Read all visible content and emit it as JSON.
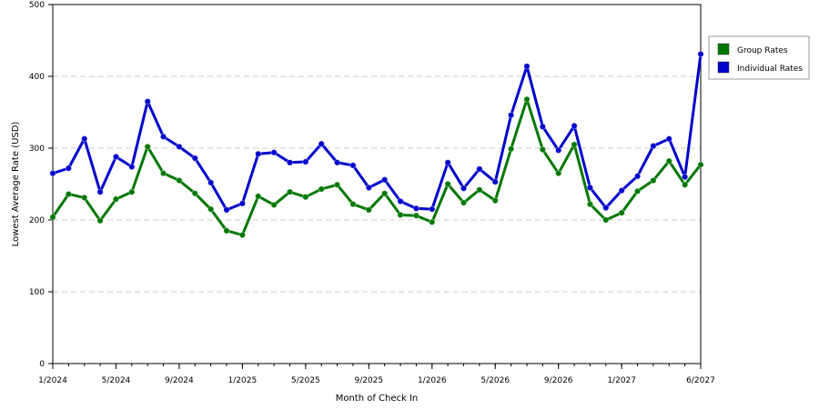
{
  "chart_data": {
    "type": "line",
    "title": "",
    "xlabel": "Month of Check In",
    "ylabel": "Lowest Average Rate (USD)",
    "ylim": [
      0,
      500
    ],
    "yticks": [
      0,
      100,
      200,
      300,
      400,
      500
    ],
    "x_tick_labels": [
      "1/2024",
      "5/2024",
      "9/2024",
      "1/2025",
      "5/2025",
      "9/2025",
      "1/2026",
      "5/2026",
      "9/2026",
      "1/2027",
      "6/2027"
    ],
    "x_tick_index": [
      0,
      4,
      8,
      12,
      16,
      20,
      24,
      28,
      32,
      36,
      41
    ],
    "x": [
      "1/2024",
      "2/2024",
      "3/2024",
      "4/2024",
      "5/2024",
      "6/2024",
      "7/2024",
      "8/2024",
      "9/2024",
      "10/2024",
      "11/2024",
      "12/2024",
      "1/2025",
      "2/2025",
      "3/2025",
      "4/2025",
      "5/2025",
      "6/2025",
      "7/2025",
      "8/2025",
      "9/2025",
      "10/2025",
      "11/2025",
      "12/2025",
      "1/2026",
      "2/2026",
      "3/2026",
      "4/2026",
      "5/2026",
      "6/2026",
      "7/2026",
      "8/2026",
      "9/2026",
      "10/2026",
      "11/2026",
      "12/2026",
      "1/2027",
      "2/2027",
      "3/2027",
      "4/2027",
      "5/2027",
      "6/2027"
    ],
    "grid": "horizontal dashed",
    "legend_position": "right",
    "series": [
      {
        "name": "Group Rates",
        "color": "#007700",
        "values": [
          204,
          236,
          231,
          199,
          229,
          239,
          302,
          265,
          255,
          237,
          215,
          185,
          179,
          233,
          221,
          239,
          232,
          243,
          249,
          222,
          214,
          237,
          207,
          206,
          197,
          250,
          224,
          242,
          227,
          299,
          368,
          298,
          265,
          305,
          222,
          200,
          210,
          240,
          255,
          282,
          249,
          277
        ]
      },
      {
        "name": "Individual Rates",
        "color": "#0000cc",
        "values": [
          265,
          272,
          313,
          239,
          288,
          274,
          365,
          316,
          302,
          286,
          252,
          214,
          223,
          292,
          294,
          280,
          281,
          306,
          280,
          276,
          245,
          256,
          226,
          216,
          215,
          280,
          244,
          271,
          253,
          346,
          414,
          330,
          297,
          331,
          245,
          217,
          241,
          261,
          303,
          313,
          260,
          431
        ]
      }
    ]
  }
}
